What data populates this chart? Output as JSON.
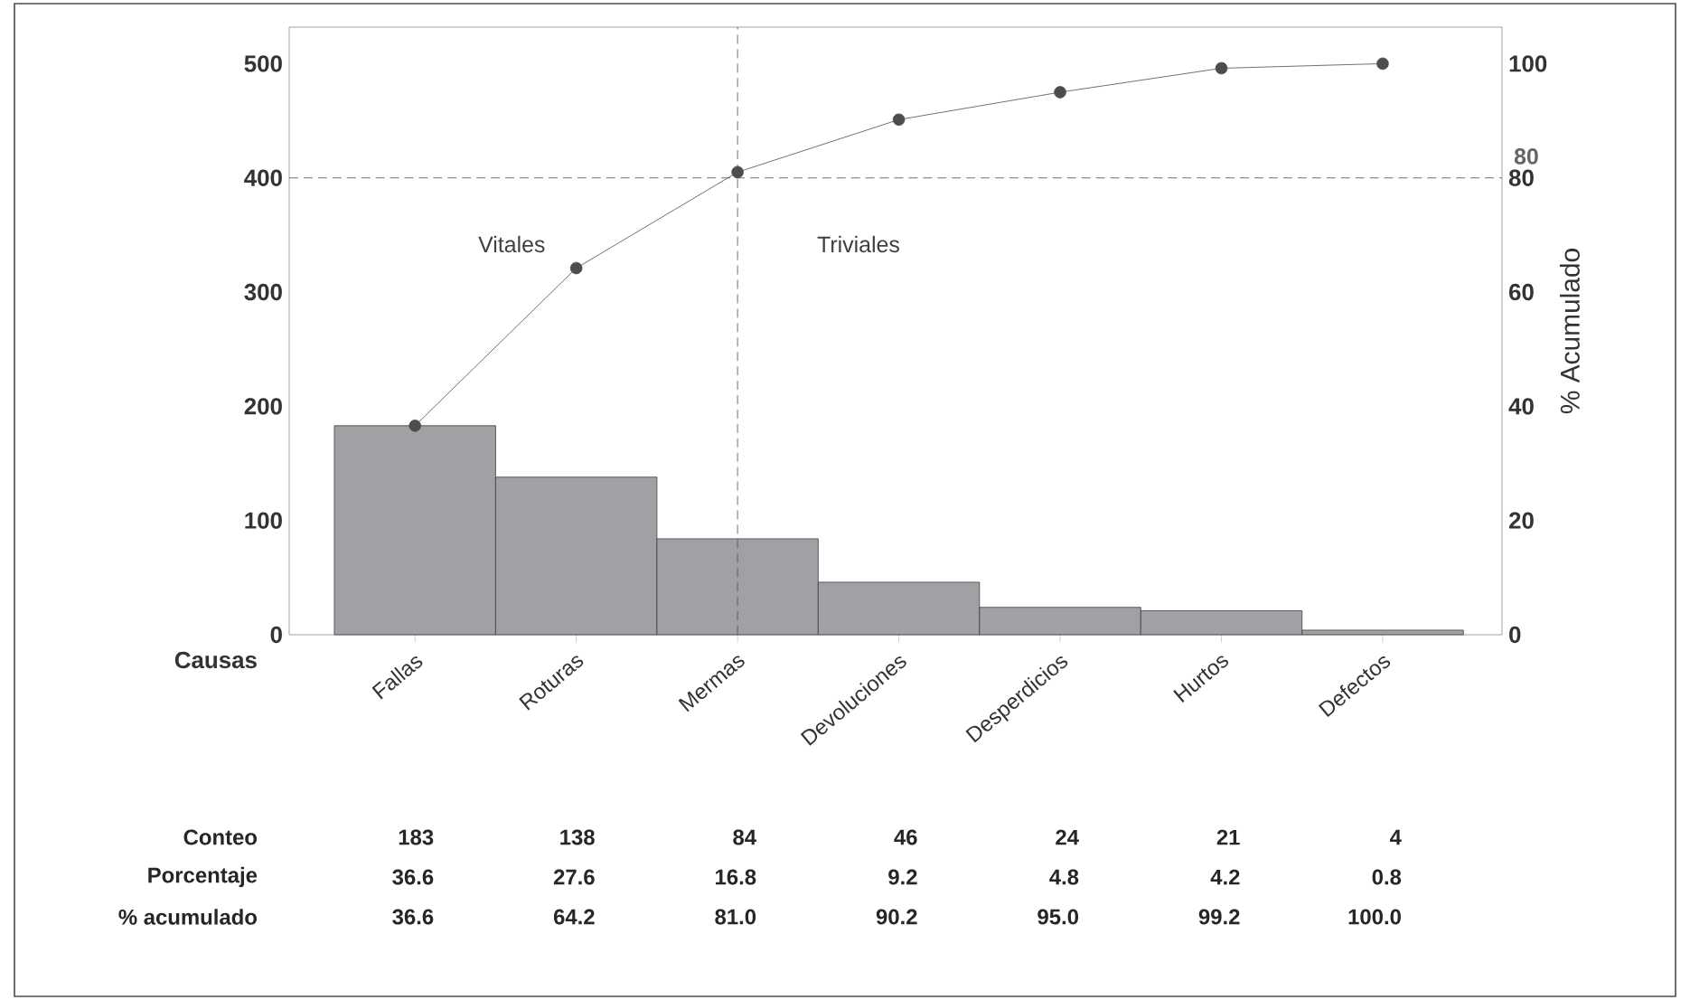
{
  "chart_data": {
    "type": "bar",
    "xlabel": "Causas",
    "y2label": "% Acumulado",
    "categories": [
      "Fallas",
      "Roturas",
      "Mermas",
      "Devoluciones",
      "Desperdicios",
      "Hurtos",
      "Defectos"
    ],
    "series": [
      {
        "color": "#a0a1a5",
        "values": [
          183,
          138,
          84,
          46,
          24,
          21,
          4
        ]
      },
      {
        "type": "line",
        "axis": "y2",
        "color": "#4d4d4d",
        "marker": "circle",
        "values": [
          36.6,
          64.2,
          81.0,
          90.2,
          95.0,
          99.2,
          100.0
        ],
        "value_labels": [
          "36.6",
          "64.2",
          "81.0",
          "90.2",
          "95.0",
          "99.2",
          "100.0"
        ]
      }
    ],
    "data_labels": true,
    "ylim": [
      0,
      532
    ],
    "yticks": [
      0,
      100,
      200,
      300,
      400,
      500
    ],
    "y2lim": [
      0,
      106.4
    ],
    "y2ticks": [
      0,
      20,
      40,
      60,
      80,
      100
    ],
    "ref_lines": [
      {
        "axis": "y2",
        "value": 80,
        "label": "80",
        "line_style": "dashed"
      }
    ],
    "annotations": [
      "Vitales",
      "Triviales",
      "Conteo",
      "Porcentaje",
      "% acumulado",
      "36.6",
      "27.6",
      "16.8",
      "9.2",
      "4.8",
      "4.2",
      "0.8"
    ]
  }
}
